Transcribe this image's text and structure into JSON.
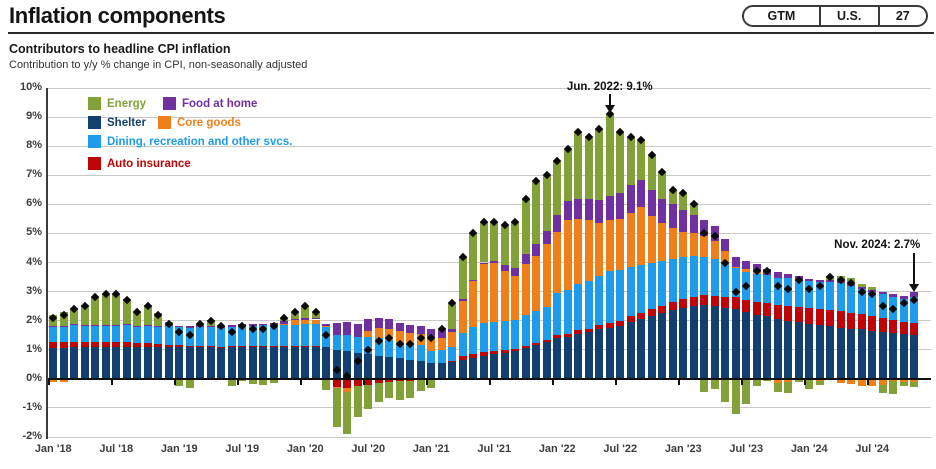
{
  "header": {
    "title": "Inflation components",
    "badge": {
      "gtm": "GTM",
      "us": "U.S.",
      "page": "27"
    }
  },
  "chart": {
    "title": "Contributors to headline CPI inflation",
    "subtitle": "Contribution to y/y % change in CPI, non-seasonally adjusted"
  },
  "chart_data": {
    "type": "bar",
    "stacked": true,
    "frequency": "monthly",
    "x_start": "Jan 2018",
    "x_end": "Nov 2024",
    "ylim": [
      -2,
      10
    ],
    "y_tick_labels": [
      "10%",
      "9%",
      "8%",
      "7%",
      "6%",
      "5%",
      "4%",
      "3%",
      "2%",
      "1%",
      "0%",
      "-1%",
      "-2%"
    ],
    "x_tick_labels": [
      "Jan '18",
      "Jul '18",
      "Jan '19",
      "Jul '19",
      "Jan '20",
      "Jul '20",
      "Jan '21",
      "Jul '21",
      "Jan '22",
      "Jul '22",
      "Jan '23",
      "Jul '23",
      "Jan '24",
      "Jul '24"
    ],
    "x_tick_indices": [
      0,
      6,
      12,
      18,
      24,
      30,
      36,
      42,
      48,
      54,
      60,
      66,
      72,
      78
    ],
    "stack_order": [
      2,
      5,
      4,
      3,
      1,
      0
    ],
    "series": [
      {
        "name": "Energy",
        "color": "#82A138",
        "values": [
          0.38,
          0.48,
          0.55,
          0.67,
          0.97,
          1.08,
          1.07,
          0.85,
          0.52,
          0.68,
          0.42,
          0.11,
          -0.18,
          -0.27,
          0.07,
          0.2,
          0.0,
          -0.22,
          -0.04,
          -0.15,
          -0.17,
          -0.1,
          0.12,
          0.23,
          0.42,
          0.2,
          -0.4,
          -1.35,
          -1.45,
          -1.05,
          -0.85,
          -0.65,
          -0.55,
          -0.65,
          -0.6,
          -0.38,
          -0.25,
          0.07,
          0.9,
          1.45,
          1.6,
          1.4,
          1.35,
          1.4,
          1.6,
          1.9,
          2.15,
          1.9,
          1.85,
          1.8,
          2.3,
          2.1,
          2.45,
          2.8,
          2.1,
          1.65,
          1.35,
          1.2,
          0.9,
          0.5,
          0.6,
          0.35,
          -0.45,
          -0.35,
          -0.8,
          -1.2,
          -0.85,
          -0.25,
          -0.03,
          -0.32,
          -0.38,
          -0.1,
          -0.3,
          -0.12,
          0.15,
          0.18,
          0.22,
          0.08,
          0.08,
          -0.28,
          -0.45,
          -0.12,
          -0.15
        ]
      },
      {
        "name": "Food at home",
        "color": "#7030A0",
        "values": [
          0.02,
          0.02,
          0.03,
          0.03,
          0.03,
          0.03,
          0.03,
          0.03,
          0.03,
          0.03,
          0.03,
          0.04,
          0.06,
          0.06,
          0.07,
          0.06,
          0.07,
          0.07,
          0.06,
          0.05,
          0.05,
          0.08,
          0.08,
          0.06,
          0.06,
          0.06,
          0.08,
          0.43,
          0.47,
          0.45,
          0.42,
          0.35,
          0.32,
          0.3,
          0.28,
          0.28,
          0.28,
          0.25,
          0.1,
          0.08,
          0.05,
          0.06,
          0.08,
          0.18,
          0.28,
          0.35,
          0.42,
          0.48,
          0.6,
          0.65,
          0.7,
          0.75,
          0.8,
          0.85,
          0.9,
          0.95,
          0.95,
          0.9,
          0.85,
          0.8,
          0.75,
          0.65,
          0.55,
          0.5,
          0.4,
          0.35,
          0.28,
          0.25,
          0.2,
          0.18,
          0.15,
          0.1,
          0.08,
          0.07,
          0.07,
          0.07,
          0.06,
          0.07,
          0.07,
          0.07,
          0.09,
          0.09,
          0.15
        ]
      },
      {
        "name": "Shelter",
        "color": "#123F6D",
        "values": [
          1.05,
          1.05,
          1.08,
          1.08,
          1.1,
          1.1,
          1.1,
          1.1,
          1.1,
          1.1,
          1.1,
          1.1,
          1.1,
          1.1,
          1.1,
          1.1,
          1.1,
          1.12,
          1.12,
          1.12,
          1.12,
          1.12,
          1.12,
          1.12,
          1.12,
          1.12,
          1.1,
          1.0,
          0.95,
          0.9,
          0.85,
          0.8,
          0.75,
          0.7,
          0.65,
          0.6,
          0.55,
          0.55,
          0.58,
          0.65,
          0.7,
          0.78,
          0.85,
          0.9,
          0.95,
          1.05,
          1.15,
          1.25,
          1.4,
          1.45,
          1.55,
          1.6,
          1.7,
          1.75,
          1.8,
          1.95,
          2.05,
          2.15,
          2.25,
          2.35,
          2.45,
          2.5,
          2.55,
          2.5,
          2.45,
          2.4,
          2.3,
          2.2,
          2.15,
          2.05,
          2.0,
          1.95,
          1.9,
          1.85,
          1.8,
          1.75,
          1.72,
          1.7,
          1.65,
          1.62,
          1.58,
          1.55,
          1.52
        ]
      },
      {
        "name": "Core goods",
        "color": "#EF8019",
        "values": [
          -0.1,
          -0.1,
          -0.03,
          -0.03,
          -0.03,
          -0.03,
          -0.03,
          -0.03,
          -0.03,
          -0.03,
          -0.05,
          -0.05,
          -0.05,
          -0.05,
          -0.02,
          -0.03,
          -0.03,
          -0.03,
          -0.03,
          -0.03,
          -0.03,
          -0.03,
          0.04,
          0.15,
          0.13,
          0.15,
          0.02,
          -0.02,
          -0.12,
          0.0,
          0.2,
          0.35,
          0.38,
          0.38,
          0.38,
          0.38,
          0.45,
          0.42,
          0.5,
          1.1,
          1.56,
          2.02,
          2.0,
          1.72,
          1.49,
          1.77,
          1.9,
          2.14,
          2.1,
          2.4,
          2.23,
          2.07,
          1.81,
          1.74,
          1.77,
          1.85,
          1.98,
          1.61,
          1.29,
          1.07,
          0.85,
          0.78,
          0.71,
          0.64,
          0.42,
          0.05,
          0.1,
          0.11,
          -0.03,
          -0.14,
          -0.12,
          -0.02,
          -0.04,
          -0.08,
          -0.05,
          -0.13,
          -0.17,
          -0.25,
          -0.25,
          -0.21,
          -0.07,
          -0.12,
          -0.12
        ]
      },
      {
        "name": "Dining, recreation and other svcs.",
        "color": "#1E9BEB",
        "values": [
          0.55,
          0.55,
          0.57,
          0.55,
          0.55,
          0.55,
          0.57,
          0.6,
          0.55,
          0.6,
          0.6,
          0.62,
          0.62,
          0.62,
          0.65,
          0.65,
          0.65,
          0.65,
          0.68,
          0.7,
          0.72,
          0.72,
          0.72,
          0.72,
          0.75,
          0.75,
          0.7,
          0.5,
          0.55,
          0.55,
          0.58,
          0.6,
          0.6,
          0.55,
          0.55,
          0.57,
          0.42,
          0.45,
          0.5,
          0.8,
          0.95,
          1.0,
          1.0,
          1.0,
          1.0,
          1.05,
          1.1,
          1.15,
          1.45,
          1.5,
          1.6,
          1.65,
          1.7,
          1.8,
          1.75,
          1.7,
          1.65,
          1.6,
          1.55,
          1.5,
          1.45,
          1.4,
          1.3,
          1.25,
          1.15,
          1.0,
          0.95,
          0.95,
          0.95,
          0.95,
          0.95,
          0.95,
          0.92,
          0.92,
          0.95,
          0.95,
          0.92,
          0.88,
          0.85,
          0.82,
          0.8,
          0.78,
          0.9
        ]
      },
      {
        "name": "Auto insurance",
        "color": "#BE0404",
        "values": [
          0.2,
          0.2,
          0.2,
          0.2,
          0.18,
          0.17,
          0.16,
          0.15,
          0.13,
          0.12,
          0.1,
          0.08,
          0.05,
          0.04,
          0.03,
          0.02,
          0.01,
          0.01,
          0.01,
          0.01,
          0.01,
          0.01,
          0.02,
          0.02,
          0.02,
          0.02,
          0.0,
          -0.28,
          -0.32,
          -0.25,
          -0.2,
          -0.15,
          -0.1,
          -0.08,
          -0.06,
          -0.05,
          -0.05,
          -0.04,
          0.02,
          0.12,
          0.14,
          0.14,
          0.12,
          0.1,
          0.08,
          0.08,
          0.08,
          0.08,
          0.1,
          0.1,
          0.12,
          0.13,
          0.14,
          0.16,
          0.18,
          0.2,
          0.22,
          0.24,
          0.26,
          0.28,
          0.3,
          0.32,
          0.34,
          0.36,
          0.38,
          0.4,
          0.42,
          0.44,
          0.46,
          0.48,
          0.5,
          0.52,
          0.54,
          0.56,
          0.58,
          0.58,
          0.55,
          0.52,
          0.5,
          0.48,
          0.45,
          0.42,
          0.4
        ]
      }
    ],
    "totals": {
      "name": "Headline CPI y/y (diamond markers)",
      "marker_color": "#0a0a0a",
      "values": [
        2.1,
        2.2,
        2.4,
        2.5,
        2.8,
        2.9,
        2.9,
        2.7,
        2.3,
        2.5,
        2.2,
        1.9,
        1.6,
        1.5,
        1.9,
        2.0,
        1.8,
        1.6,
        1.8,
        1.7,
        1.7,
        1.8,
        2.1,
        2.3,
        2.5,
        2.3,
        1.5,
        0.3,
        0.1,
        0.6,
        1.0,
        1.3,
        1.4,
        1.2,
        1.2,
        1.4,
        1.4,
        1.7,
        2.6,
        4.2,
        5.0,
        5.4,
        5.4,
        5.3,
        5.4,
        6.2,
        6.8,
        7.0,
        7.5,
        7.9,
        8.5,
        8.3,
        8.6,
        9.1,
        8.5,
        8.3,
        8.2,
        7.7,
        7.1,
        6.5,
        6.4,
        6.0,
        5.0,
        4.9,
        4.0,
        3.0,
        3.2,
        3.7,
        3.7,
        3.2,
        3.1,
        3.4,
        3.1,
        3.2,
        3.5,
        3.4,
        3.3,
        3.0,
        2.9,
        2.5,
        2.4,
        2.6,
        2.7
      ]
    },
    "annotations": [
      {
        "label": "Jun. 2022: 9.1%",
        "month_index": 53,
        "value": 9.1
      },
      {
        "label": "Nov. 2024: 2.7%",
        "month_index": 82,
        "value": 2.7
      }
    ]
  }
}
